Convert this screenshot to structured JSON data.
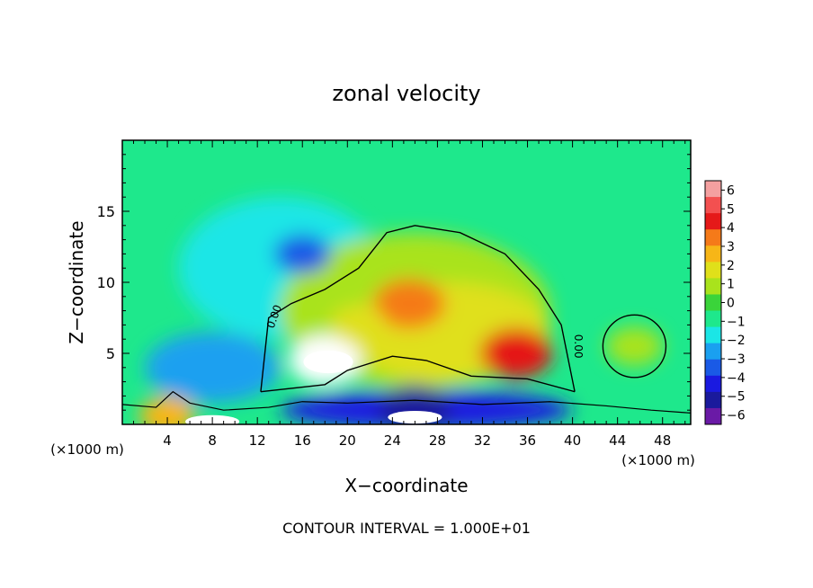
{
  "chart_data": {
    "type": "heatmap",
    "title": "zonal velocity",
    "xlabel": "X−coordinate",
    "ylabel": "Z−coordinate",
    "x_unit_left": "(×1000 m)",
    "x_unit_right": "(×1000 m)",
    "footer": "CONTOUR INTERVAL = 1.000E+01",
    "xlim": [
      0,
      50.5
    ],
    "ylim": [
      0,
      20
    ],
    "x_ticks": [
      4,
      8,
      12,
      16,
      20,
      24,
      28,
      32,
      36,
      40,
      44,
      48
    ],
    "x_tick_labels": [
      "4",
      "8",
      "12",
      "16",
      "20",
      "24",
      "28",
      "32",
      "36",
      "40",
      "44",
      "48"
    ],
    "y_ticks": [
      5,
      10,
      15
    ],
    "y_tick_labels": [
      "5",
      "10",
      "15"
    ],
    "colorbar": {
      "levels": [
        6,
        5,
        4,
        3,
        2,
        1,
        0,
        -1,
        -2,
        -3,
        -4,
        -5,
        -6
      ],
      "labels": [
        "6",
        "5",
        "4",
        "3",
        "2",
        "1",
        "0",
        "−1",
        "−2",
        "−3",
        "−4",
        "−5",
        "−6"
      ],
      "colors": [
        "#f4a0a0",
        "#f35050",
        "#e51919",
        "#f57a19",
        "#f7b617",
        "#e0e01a",
        "#a9e31c",
        "#3ad43a",
        "#1ee88c",
        "#1be6e6",
        "#1aa0f0",
        "#1a5ae6",
        "#1a1ae0",
        "#1a1a9c",
        "#6a1aa6"
      ]
    },
    "contour_labels": [
      "0.00",
      "0.00"
    ],
    "background_value": -1,
    "features": [
      {
        "name": "upper-negative-core",
        "x": 16,
        "z": 12,
        "value": -3.5
      },
      {
        "name": "positive-core-upper",
        "x": 25.5,
        "z": 8.5,
        "value": 4.5
      },
      {
        "name": "positive-core-low-left",
        "x": 18,
        "z": 4.5,
        "value": 6.5
      },
      {
        "name": "positive-core-right",
        "x": 35,
        "z": 5,
        "value": 4.8
      },
      {
        "name": "positive-core-mid",
        "x": 21,
        "z": 7,
        "value": 2.5
      },
      {
        "name": "negative-low-left",
        "x": 8,
        "z": 3.5,
        "value": -3.2
      },
      {
        "name": "negative-surface",
        "x": 26,
        "z": 1,
        "value": -5.5
      },
      {
        "name": "positive-bubble-right",
        "x": 45.5,
        "z": 5.5,
        "value": 1.2
      },
      {
        "name": "left-surface-mix",
        "x": 4,
        "z": 0.6,
        "value": 3
      }
    ]
  }
}
